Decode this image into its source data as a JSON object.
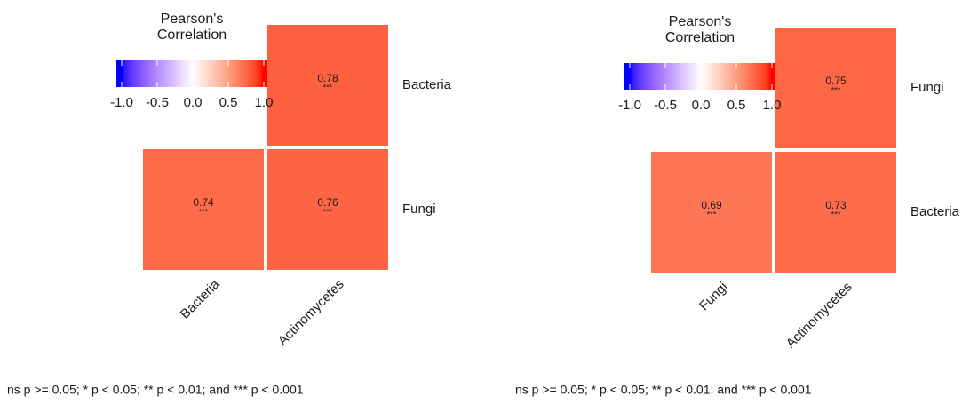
{
  "chart_data": [
    {
      "type": "heatmap",
      "legend_title": [
        "Pearson's",
        "Correlation"
      ],
      "x_categories": [
        "Bacteria",
        "Actinomycetes"
      ],
      "y_categories": [
        "Bacteria",
        "Fungi"
      ],
      "values": [
        [
          null,
          0.78
        ],
        [
          0.74,
          0.76
        ]
      ],
      "significance": [
        [
          null,
          "***"
        ],
        [
          "***",
          "***"
        ]
      ],
      "colorscale": {
        "low": "#0000ff",
        "mid": "#ffffff",
        "high": "#ff0000"
      },
      "clim": [
        -1,
        1
      ],
      "cticks": [
        {
          "value": -1,
          "label": "-1.0"
        },
        -0.5,
        {
          "value": 0,
          "label": "0.0"
        },
        0.5,
        {
          "value": 1,
          "label": "1.0"
        }
      ],
      "caption": "ns p >= 0.05; * p < 0.05; ** p < 0.01; and *** p < 0.001"
    },
    {
      "type": "heatmap",
      "legend_title": [
        "Pearson's",
        "Correlation"
      ],
      "x_categories": [
        "Fungi",
        "Actinomycetes"
      ],
      "y_categories": [
        "Fungi",
        "Bacteria"
      ],
      "values": [
        [
          null,
          0.75
        ],
        [
          0.69,
          0.73
        ]
      ],
      "significance": [
        [
          null,
          "***"
        ],
        [
          "***",
          "***"
        ]
      ],
      "colorscale": {
        "low": "#0000ff",
        "mid": "#ffffff",
        "high": "#ff0000"
      },
      "clim": [
        -1,
        1
      ],
      "cticks": [
        {
          "value": -1,
          "label": "-1.0"
        },
        -0.5,
        {
          "value": 0,
          "label": "0.0"
        },
        0.5,
        {
          "value": 1,
          "label": "1.0"
        }
      ],
      "caption": "ns p >= 0.05; * p < 0.05; ** p < 0.01; and *** p < 0.001"
    }
  ]
}
